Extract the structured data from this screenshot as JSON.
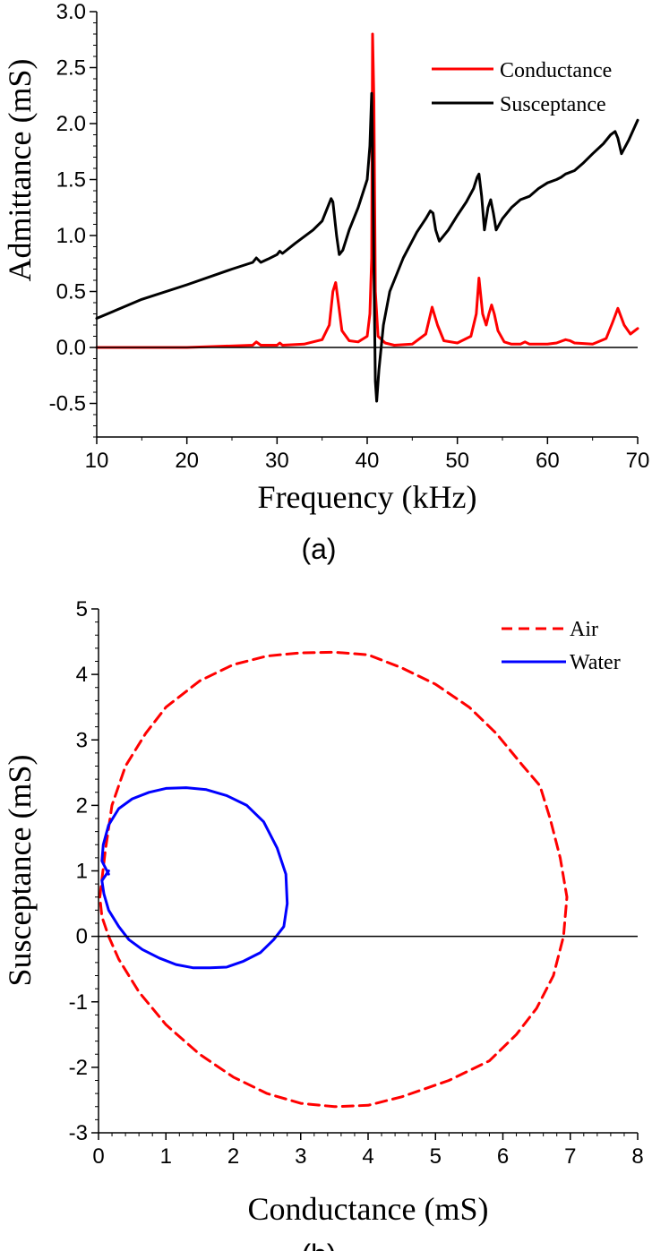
{
  "chart_data": [
    {
      "type": "line",
      "panel_label": "(a)",
      "title": "",
      "xlabel": "Frequency (kHz)",
      "ylabel": "Admittance (mS)",
      "xlim": [
        10,
        70
      ],
      "ylim": [
        -0.8,
        3.0
      ],
      "xticks": [
        "10",
        "20",
        "30",
        "40",
        "50",
        "60",
        "70"
      ],
      "yticks": [
        "-0.5",
        "0.0",
        "0.5",
        "1.0",
        "1.5",
        "2.0",
        "2.5",
        "3.0"
      ],
      "zero_line": true,
      "legend_position": "top-right",
      "series": [
        {
          "name": "Conductance",
          "color": "#ff0000",
          "x": [
            10,
            20,
            27.3,
            27.7,
            28.2,
            30,
            30.3,
            30.6,
            33,
            35,
            35.8,
            36.2,
            36.5,
            36.8,
            37.2,
            38,
            39,
            40,
            40.3,
            40.5,
            40.6,
            40.75,
            40.9,
            41.2,
            42,
            43,
            45,
            46.5,
            47.2,
            47.8,
            48.5,
            50,
            51.5,
            52.1,
            52.4,
            52.8,
            53.2,
            53.5,
            53.8,
            54.1,
            54.5,
            55.2,
            56,
            57,
            57.5,
            58,
            60,
            61,
            62,
            62.5,
            63,
            65,
            66.5,
            67.2,
            67.8,
            68.5,
            69.2,
            70
          ],
          "values": [
            0,
            0,
            0.02,
            0.05,
            0.02,
            0.02,
            0.04,
            0.02,
            0.03,
            0.07,
            0.2,
            0.5,
            0.58,
            0.4,
            0.15,
            0.06,
            0.05,
            0.1,
            0.3,
            0.8,
            2.8,
            2.2,
            0.5,
            0.1,
            0.04,
            0.02,
            0.03,
            0.12,
            0.36,
            0.2,
            0.06,
            0.04,
            0.1,
            0.3,
            0.62,
            0.3,
            0.2,
            0.3,
            0.38,
            0.3,
            0.15,
            0.05,
            0.03,
            0.03,
            0.05,
            0.03,
            0.03,
            0.04,
            0.07,
            0.06,
            0.04,
            0.03,
            0.08,
            0.22,
            0.35,
            0.2,
            0.12,
            0.17
          ]
        },
        {
          "name": "Susceptance",
          "color": "#000000",
          "x": [
            10,
            15,
            20,
            25,
            27.3,
            27.7,
            28.2,
            29,
            30,
            30.3,
            30.6,
            32,
            34,
            35,
            35.6,
            36,
            36.2,
            36.6,
            36.9,
            37.3,
            38,
            39,
            40,
            40.3,
            40.5,
            40.6,
            40.75,
            40.9,
            41.05,
            41.3,
            41.8,
            42.5,
            44,
            45.5,
            46.5,
            47,
            47.3,
            47.6,
            48,
            49,
            50,
            51,
            51.8,
            52.2,
            52.4,
            52.7,
            53,
            53.4,
            53.7,
            54,
            54.3,
            55,
            56,
            57,
            58,
            59,
            60,
            61,
            61.5,
            62,
            63,
            64,
            65,
            66.2,
            67,
            67.5,
            67.8,
            68.2,
            69,
            70
          ],
          "values": [
            0.26,
            0.43,
            0.56,
            0.7,
            0.76,
            0.8,
            0.76,
            0.79,
            0.83,
            0.86,
            0.84,
            0.93,
            1.05,
            1.13,
            1.25,
            1.33,
            1.3,
            1.0,
            0.83,
            0.87,
            1.05,
            1.25,
            1.5,
            1.8,
            2.27,
            1.8,
            0.7,
            -0.3,
            -0.48,
            -0.2,
            0.2,
            0.5,
            0.8,
            1.03,
            1.15,
            1.22,
            1.2,
            1.05,
            0.95,
            1.05,
            1.18,
            1.3,
            1.42,
            1.52,
            1.55,
            1.35,
            1.05,
            1.25,
            1.32,
            1.2,
            1.05,
            1.15,
            1.25,
            1.32,
            1.35,
            1.42,
            1.47,
            1.5,
            1.52,
            1.55,
            1.58,
            1.65,
            1.73,
            1.82,
            1.9,
            1.93,
            1.87,
            1.73,
            1.85,
            2.03
          ]
        }
      ]
    },
    {
      "type": "line",
      "panel_label": "(b)",
      "title": "",
      "xlabel": "Conductance (mS)",
      "ylabel": "Susceptance (mS)",
      "xlim": [
        0,
        8
      ],
      "ylim": [
        -3,
        5
      ],
      "xticks": [
        "0",
        "1",
        "2",
        "3",
        "4",
        "5",
        "6",
        "7",
        "8"
      ],
      "yticks": [
        "-3",
        "-2",
        "-1",
        "0",
        "1",
        "2",
        "3",
        "4",
        "5"
      ],
      "zero_line": true,
      "legend_position": "top-right",
      "series": [
        {
          "name": "Air",
          "color": "#ff0000",
          "dashed": true,
          "x": [
            0.02,
            0.1,
            0.2,
            0.4,
            0.7,
            1.0,
            1.5,
            2.0,
            2.5,
            3.0,
            3.5,
            4.0,
            4.5,
            5.0,
            5.5,
            5.9,
            6.3,
            6.55,
            6.7,
            6.85,
            6.95,
            6.9,
            6.75,
            6.5,
            6.2,
            5.8,
            5.2,
            4.5,
            4.0,
            3.5,
            3.0,
            2.5,
            2.0,
            1.5,
            1.0,
            0.6,
            0.3,
            0.15,
            0.05,
            0.02
          ],
          "y": [
            0.6,
            1.3,
            2.0,
            2.6,
            3.1,
            3.5,
            3.9,
            4.15,
            4.28,
            4.33,
            4.34,
            4.3,
            4.1,
            3.85,
            3.5,
            3.1,
            2.6,
            2.3,
            1.8,
            1.2,
            0.6,
            0.0,
            -0.6,
            -1.1,
            -1.5,
            -1.9,
            -2.2,
            -2.45,
            -2.58,
            -2.6,
            -2.55,
            -2.4,
            -2.15,
            -1.8,
            -1.35,
            -0.85,
            -0.35,
            0.0,
            0.3,
            0.6
          ]
        },
        {
          "name": "Water",
          "color": "#0000ff",
          "dashed": false,
          "x": [
            0.15,
            0.05,
            0.07,
            0.15,
            0.3,
            0.5,
            0.75,
            1.0,
            1.3,
            1.6,
            1.9,
            2.2,
            2.45,
            2.65,
            2.78,
            2.8,
            2.75,
            2.6,
            2.4,
            2.15,
            1.9,
            1.65,
            1.4,
            1.15,
            0.9,
            0.65,
            0.45,
            0.3,
            0.15,
            0.08,
            0.05,
            0.15
          ],
          "y": [
            0.95,
            1.15,
            1.4,
            1.7,
            1.95,
            2.1,
            2.2,
            2.26,
            2.27,
            2.24,
            2.15,
            2.0,
            1.75,
            1.35,
            0.95,
            0.5,
            0.15,
            -0.05,
            -0.25,
            -0.38,
            -0.47,
            -0.48,
            -0.48,
            -0.43,
            -0.33,
            -0.2,
            -0.05,
            0.15,
            0.4,
            0.65,
            0.85,
            1.0
          ]
        }
      ]
    }
  ]
}
